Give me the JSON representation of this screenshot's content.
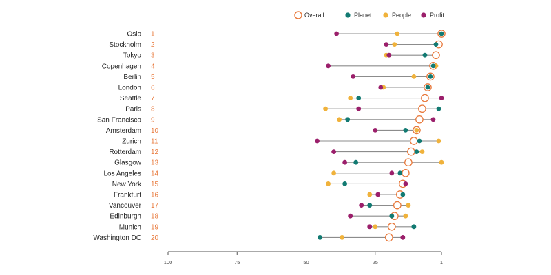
{
  "chart_data": {
    "type": "dot-range",
    "x_axis": {
      "ticks": [
        100,
        75,
        50,
        25,
        1
      ],
      "reversed": true,
      "range": [
        100,
        1
      ]
    },
    "legend": {
      "placement": "top-right",
      "entries": [
        {
          "label": "Overall",
          "marker": "hollow-circle",
          "color": "#e8783a"
        },
        {
          "label": "Planet",
          "marker": "filled-circle",
          "color": "#127a72"
        },
        {
          "label": "People",
          "marker": "filled-circle",
          "color": "#f0b23b"
        },
        {
          "label": "Profit",
          "marker": "filled-circle",
          "color": "#9b1f6b"
        }
      ]
    },
    "rows": [
      {
        "city": "Oslo",
        "rank": "1",
        "overall": 1,
        "planet": 1,
        "people": 17,
        "profit": 39
      },
      {
        "city": "Stockholm",
        "rank": "2",
        "overall": 2,
        "planet": 3,
        "people": 18,
        "profit": 21
      },
      {
        "city": "Tokyo",
        "rank": "3",
        "overall": 3,
        "planet": 7,
        "people": 21,
        "profit": 20
      },
      {
        "city": "Copenhagen",
        "rank": "4",
        "overall": 4,
        "planet": 4,
        "people": 3,
        "profit": 42
      },
      {
        "city": "Berlin",
        "rank": "5",
        "overall": 5,
        "planet": 5,
        "people": 11,
        "profit": 33
      },
      {
        "city": "London",
        "rank": "6",
        "overall": 6,
        "planet": 6,
        "people": 22,
        "profit": 23
      },
      {
        "city": "Seattle",
        "rank": "7",
        "overall": 7,
        "planet": 31,
        "people": 34,
        "profit": 1
      },
      {
        "city": "Paris",
        "rank": "8",
        "overall": 8,
        "planet": 2,
        "people": 43,
        "profit": 31
      },
      {
        "city": "San Francisco",
        "rank": "9",
        "overall": 9,
        "planet": 35,
        "people": 38,
        "profit": 4
      },
      {
        "city": "Amsterdam",
        "rank": "10",
        "overall": 10,
        "planet": 14,
        "people": 10,
        "profit": 25
      },
      {
        "city": "Zurich",
        "rank": "11",
        "overall": 11,
        "planet": 9,
        "people": 2,
        "profit": 46
      },
      {
        "city": "Rotterdam",
        "rank": "12",
        "overall": 12,
        "planet": 10,
        "people": 8,
        "profit": 40
      },
      {
        "city": "Glasgow",
        "rank": "13",
        "overall": 13,
        "planet": 32,
        "people": 1,
        "profit": 36
      },
      {
        "city": "Los Angeles",
        "rank": "14",
        "overall": 14,
        "planet": 16,
        "people": 40,
        "profit": 19
      },
      {
        "city": "New York",
        "rank": "15",
        "overall": 15,
        "planet": 36,
        "people": 42,
        "profit": 14
      },
      {
        "city": "Frankfurt",
        "rank": "16",
        "overall": 16,
        "planet": 15,
        "people": 27,
        "profit": 24
      },
      {
        "city": "Vancouver",
        "rank": "17",
        "overall": 17,
        "planet": 27,
        "people": 13,
        "profit": 30
      },
      {
        "city": "Edinburgh",
        "rank": "18",
        "overall": 18,
        "planet": 19,
        "people": 14,
        "profit": 34
      },
      {
        "city": "Munich",
        "rank": "19",
        "overall": 19,
        "planet": 11,
        "people": 25,
        "profit": 27
      },
      {
        "city": "Washington DC",
        "rank": "20",
        "overall": 20,
        "planet": 45,
        "people": 37,
        "profit": 15
      }
    ]
  }
}
